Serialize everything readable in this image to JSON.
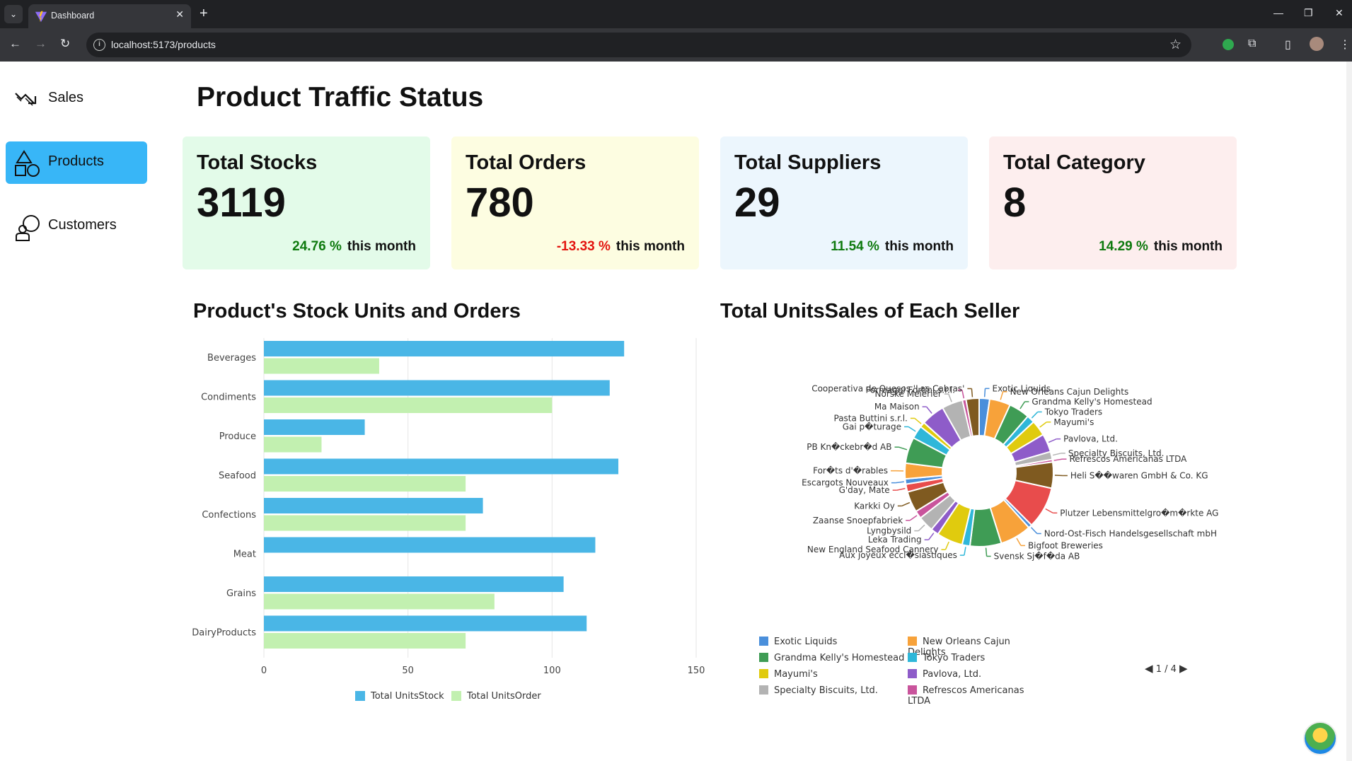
{
  "browser": {
    "tab_title": "Dashboard",
    "url": "localhost:5173/products"
  },
  "sidebar": {
    "items": [
      {
        "label": "Sales",
        "icon": "trending-down-icon",
        "active": false
      },
      {
        "label": "Products",
        "icon": "shapes-icon",
        "active": true
      },
      {
        "label": "Customers",
        "icon": "customer-icon",
        "active": false
      }
    ]
  },
  "page": {
    "title": "Product Traffic Status"
  },
  "cards": [
    {
      "title": "Total Stocks",
      "value": "3119",
      "pct": "24.76 %",
      "trend": "positive",
      "suffix": "this month",
      "bg": "#e3fbe9"
    },
    {
      "title": "Total Orders",
      "value": "780",
      "pct": "-13.33 %",
      "trend": "negative",
      "suffix": "this month",
      "bg": "#fdfde1"
    },
    {
      "title": "Total Suppliers",
      "value": "29",
      "pct": "11.54 %",
      "trend": "positive",
      "suffix": "this month",
      "bg": "#ecf6fd"
    },
    {
      "title": "Total Category",
      "value": "8",
      "pct": "14.29 %",
      "trend": "positive",
      "suffix": "this month",
      "bg": "#fdeeee"
    }
  ],
  "bar_section": {
    "title": "Product's Stock Units and Orders"
  },
  "pie_section": {
    "title": "Total UnitsSales of Each Seller",
    "pager": "1 / 4"
  },
  "chart_data": [
    {
      "type": "bar",
      "orientation": "horizontal",
      "categories": [
        "Beverages",
        "Condiments",
        "Produce",
        "Seafood",
        "Confections",
        "Meat",
        "Grains",
        "DairyProducts"
      ],
      "series": [
        {
          "name": "Total UnitsStock",
          "color": "#4ab6e6",
          "values": [
            125,
            120,
            35,
            123,
            76,
            115,
            104,
            112
          ]
        },
        {
          "name": "Total UnitsOrder",
          "color": "#c2f0b0",
          "values": [
            40,
            100,
            20,
            70,
            70,
            0,
            80,
            70
          ]
        }
      ],
      "x_ticks": [
        "0",
        "50",
        "100",
        "150"
      ],
      "xlim": [
        0,
        150
      ],
      "grid": true,
      "legend": "bottom"
    },
    {
      "type": "pie",
      "donut": true,
      "slices": [
        {
          "label": "Exotic Liquids",
          "value": 2.0,
          "color": "#4a8fdb"
        },
        {
          "label": "New Orleans Cajun Delights",
          "value": 4.0,
          "color": "#f7a23a"
        },
        {
          "label": "Grandma Kelly's Homestead",
          "value": 4.0,
          "color": "#3f9c55"
        },
        {
          "label": "Tokyo Traders",
          "value": 1.5,
          "color": "#2fb7d9"
        },
        {
          "label": "Mayumi's",
          "value": 3.0,
          "color": "#e0cb0e"
        },
        {
          "label": "Pavlova, Ltd.",
          "value": 3.5,
          "color": "#8e5cc9"
        },
        {
          "label": "Specialty Biscuits, Ltd.",
          "value": 1.5,
          "color": "#b3b3b3"
        },
        {
          "label": "Refrescos Americanas LTDA",
          "value": 0.5,
          "color": "#c9549c"
        },
        {
          "label": "Heli S��waren GmbH & Co. KG",
          "value": 5.0,
          "color": "#7f5a20"
        },
        {
          "label": "Plutzer Lebensmittelgro�m�rkte AG",
          "value": 8.0,
          "color": "#e84c4c"
        },
        {
          "label": "Nord-Ost-Fisch Handelsgesellschaft mbH",
          "value": 0.7,
          "color": "#4a8fdb"
        },
        {
          "label": "Bigfoot Breweries",
          "value": 6.0,
          "color": "#f7a23a"
        },
        {
          "label": "Svensk Sj�f�da AB",
          "value": 6.0,
          "color": "#3f9c55"
        },
        {
          "label": "Aux joyeux eccl�siastiques",
          "value": 1.5,
          "color": "#2fb7d9"
        },
        {
          "label": "New England Seafood Cannery",
          "value": 5.0,
          "color": "#e0cb0e"
        },
        {
          "label": "Leka Trading",
          "value": 1.5,
          "color": "#8e5cc9"
        },
        {
          "label": "Lyngbysild",
          "value": 3.0,
          "color": "#b3b3b3"
        },
        {
          "label": "Zaanse Snoepfabriek",
          "value": 1.5,
          "color": "#c9549c"
        },
        {
          "label": "Karkki Oy",
          "value": 4.0,
          "color": "#7f5a20"
        },
        {
          "label": "G'day, Mate",
          "value": 1.5,
          "color": "#e84c4c"
        },
        {
          "label": "Escargots Nouveaux",
          "value": 1.0,
          "color": "#4a8fdb"
        },
        {
          "label": "For�ts d'�rables",
          "value": 3.0,
          "color": "#f7a23a"
        },
        {
          "label": "PB Kn�ckebr�d AB",
          "value": 5.0,
          "color": "#3f9c55"
        },
        {
          "label": "Gai p�turage",
          "value": 2.5,
          "color": "#2fb7d9"
        },
        {
          "label": "Pasta Buttini s.r.l.",
          "value": 1.0,
          "color": "#e0cb0e"
        },
        {
          "label": "Ma Maison",
          "value": 4.5,
          "color": "#8e5cc9"
        },
        {
          "label": "Norske Meierier",
          "value": 4.0,
          "color": "#b3b3b3"
        },
        {
          "label": "Formaggi Fortini s.r.l.",
          "value": 0.7,
          "color": "#c9549c"
        },
        {
          "label": "Cooperativa de Quesos 'Las Cabras'",
          "value": 2.5,
          "color": "#7f5a20"
        }
      ],
      "legend": "bottom",
      "legend_items": [
        {
          "label": "Exotic Liquids",
          "color": "#4a8fdb"
        },
        {
          "label": "New Orleans Cajun Delights",
          "color": "#f7a23a"
        },
        {
          "label": "Grandma Kelly's Homestead",
          "color": "#3f9c55"
        },
        {
          "label": "Tokyo Traders",
          "color": "#2fb7d9"
        },
        {
          "label": "Mayumi's",
          "color": "#e0cb0e"
        },
        {
          "label": "Pavlova, Ltd.",
          "color": "#8e5cc9"
        },
        {
          "label": "Specialty Biscuits, Ltd.",
          "color": "#b3b3b3"
        },
        {
          "label": "Refrescos Americanas LTDA",
          "color": "#c9549c"
        }
      ]
    }
  ]
}
